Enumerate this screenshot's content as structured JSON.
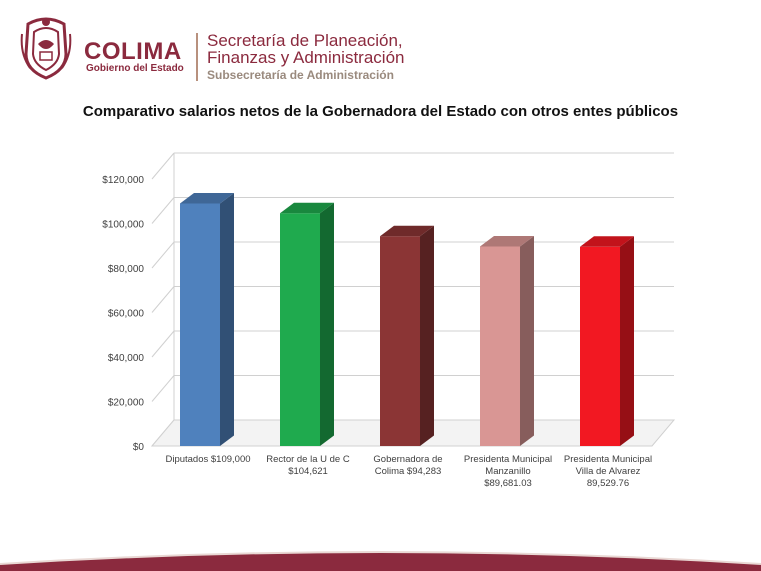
{
  "header": {
    "brand": "COLIMA",
    "brand_sub": "Gobierno del Estado",
    "secretaria_line1": "Secretaría de Planeación,",
    "secretaria_line2": "Finanzas y Administración",
    "subsecretaria": "Subsecretaría de Administración"
  },
  "colors": {
    "brand": "#8b2a3e",
    "axis_text": "#404040",
    "grid": "#d0d0d0"
  },
  "chart_data": {
    "type": "bar",
    "title": "Comparativo salarios netos de la Gobernadora del Estado con otros entes públicos",
    "xlabel": "",
    "ylabel": "",
    "ylim": [
      0,
      120000
    ],
    "y_ticks": [
      "$0",
      "$20,000",
      "$40,000",
      "$60,000",
      "$80,000",
      "$100,000",
      "$120,000"
    ],
    "grid": true,
    "legend": "none",
    "style": "3d-column",
    "categories": [
      [
        "Diputados $109,000"
      ],
      [
        "Rector de la U de C",
        "$104,621"
      ],
      [
        "Gobernadora de",
        "Colima $94,283"
      ],
      [
        "Presidenta Municipal",
        "Manzanillo",
        "$89,681.03"
      ],
      [
        "Presidenta Municipal",
        "Villa de Alvarez",
        "89,529.76"
      ]
    ],
    "values": [
      109000,
      104621,
      94283,
      89681.03,
      89529.76
    ],
    "bar_colors": [
      "#4f81bd",
      "#1faa4e",
      "#8b3535",
      "#d99694",
      "#f21822"
    ]
  }
}
